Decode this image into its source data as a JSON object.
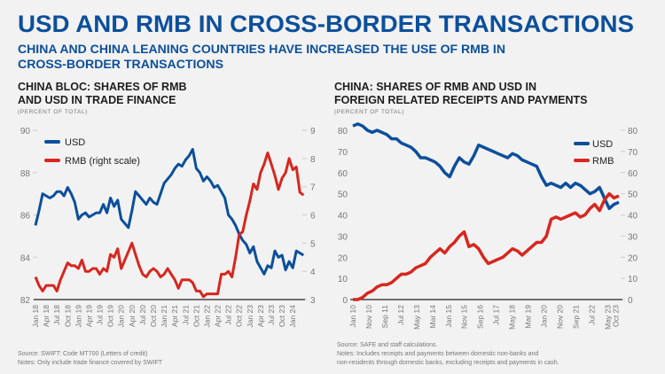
{
  "header": {
    "title": "USD AND RMB IN CROSS-BORDER TRANSACTIONS",
    "subtitle_line1": "CHINA AND CHINA LEANING COUNTRIES HAVE INCREASED THE USE OF RMB IN",
    "subtitle_line2": "CROSS-BORDER TRANSACTIONS"
  },
  "colors": {
    "usd": "#0b4f9c",
    "rmb": "#d8261e",
    "title": "#0b4f9c"
  },
  "chart_data": [
    {
      "type": "line",
      "title_line1": "CHINA BLOC: SHARES OF RMB",
      "title_line2": "AND USD IN TRADE FINANCE",
      "unit": "(PERCENT OF TOTAL)",
      "frequency": "monthly",
      "start": "2018-01",
      "x_tick_labels": [
        "Jan 18",
        "Apr 18",
        "Jul 18",
        "Oct 18",
        "Jan 19",
        "Apr 19",
        "Jul 19",
        "Oct 19",
        "Jan 20",
        "Apr 20",
        "Jul 20",
        "Oct 20",
        "Jan 21",
        "Apr 21",
        "Jul 21",
        "Oct 21",
        "Jan 22",
        "Apr 22",
        "Jul 22",
        "Oct 22",
        "Jan 23",
        "Apr 23",
        "Jul 23",
        "Oct 23",
        "Jan 24"
      ],
      "ylim_left": [
        82,
        90
      ],
      "yticks_left": [
        "82",
        "84",
        "86",
        "88",
        "90"
      ],
      "ylim_right": [
        3,
        9
      ],
      "yticks_right": [
        "3",
        "4",
        "5",
        "6",
        "7",
        "8",
        "9"
      ],
      "legend_placement": "top-left",
      "series": [
        {
          "name": "USD",
          "axis": "left",
          "color": "#0b4f9c",
          "values": [
            85.5,
            86.2,
            87.0,
            86.9,
            86.8,
            86.9,
            87.1,
            87.1,
            86.9,
            87.3,
            87.0,
            86.6,
            85.8,
            86.0,
            86.1,
            85.9,
            86.0,
            86.1,
            86.1,
            86.5,
            86.1,
            86.8,
            86.4,
            86.7,
            85.8,
            85.6,
            85.4,
            86.2,
            87.1,
            86.9,
            86.7,
            86.5,
            86.8,
            86.6,
            86.5,
            87.0,
            87.5,
            87.7,
            87.9,
            88.2,
            88.4,
            88.3,
            88.6,
            88.8,
            89.1,
            88.2,
            88.0,
            87.6,
            87.8,
            87.6,
            87.3,
            87.4,
            87.1,
            86.8,
            86.0,
            85.8,
            85.5,
            85.1,
            84.8,
            84.6,
            84.2,
            84.5,
            83.8,
            83.5,
            83.2,
            83.6,
            83.5,
            84.3,
            84.0,
            84.1,
            83.4,
            83.8,
            83.5,
            84.3,
            84.2,
            84.1
          ]
        },
        {
          "name": "RMB (right scale)",
          "axis": "right",
          "color": "#d8261e",
          "values": [
            3.8,
            3.5,
            3.3,
            3.5,
            3.5,
            3.5,
            3.3,
            3.7,
            4.0,
            4.3,
            4.2,
            4.2,
            4.1,
            4.4,
            4.0,
            4.0,
            4.1,
            4.1,
            3.9,
            4.1,
            4.0,
            4.6,
            4.5,
            4.8,
            4.1,
            4.4,
            4.7,
            5.0,
            4.6,
            4.2,
            3.9,
            3.8,
            4.0,
            4.1,
            4.0,
            3.8,
            3.9,
            4.1,
            3.9,
            3.7,
            3.4,
            3.7,
            3.7,
            3.7,
            3.6,
            3.3,
            3.3,
            3.1,
            3.2,
            3.2,
            3.2,
            3.2,
            3.9,
            3.9,
            4.0,
            3.8,
            4.5,
            5.3,
            5.4,
            6.0,
            6.5,
            7.1,
            6.9,
            7.5,
            7.8,
            8.2,
            7.8,
            7.4,
            6.9,
            7.3,
            7.5,
            8.0,
            7.6,
            7.7,
            6.8,
            6.7
          ]
        }
      ],
      "source": "Source: SWIFT: Code MT700 (Letters of credit)",
      "notes": "Notes: Only include trade finance covered by SWIFT"
    },
    {
      "type": "line",
      "title_line1": "CHINA: SHARES OF RMB AND USD IN",
      "title_line2": "FOREIGN RELATED RECEIPTS AND PAYMENTS",
      "unit": "(PERCENT OF TOTAL)",
      "frequency": "quarterly",
      "start": "2010-Q1",
      "x_tick_labels": [
        "Jan 10",
        "Nov 10",
        "Sep 11",
        "Jul 12",
        "May 13",
        "Mar 14",
        "Jan 15",
        "Nov 15",
        "Sep 16",
        "Jul 17",
        "May 18",
        "Mar 19",
        "Jan 20",
        "Nov 20",
        "Sep 21",
        "Jul 22",
        "May 23",
        "Oct 23"
      ],
      "ylim": [
        0,
        85
      ],
      "yticks": [
        "0",
        "10",
        "20",
        "30",
        "40",
        "50",
        "60",
        "70",
        "80"
      ],
      "legend_placement": "top-right",
      "series": [
        {
          "name": "USD",
          "color": "#0b4f9c",
          "values": [
            82,
            83,
            82,
            80,
            79,
            80,
            79,
            78,
            76,
            76,
            74,
            73,
            72,
            70,
            67,
            67,
            66,
            65,
            63,
            60,
            58,
            63,
            67,
            65,
            64,
            68,
            73,
            72,
            71,
            70,
            69,
            68,
            67,
            69,
            68,
            66,
            65,
            64,
            63,
            58,
            54,
            55,
            54,
            53,
            55,
            53,
            55,
            54,
            52,
            50,
            51,
            53,
            48,
            43,
            45,
            46
          ]
        },
        {
          "name": "RMB",
          "color": "#d8261e",
          "values": [
            0,
            0,
            1,
            3,
            4,
            6,
            7,
            7,
            8,
            10,
            12,
            12,
            13,
            15,
            16,
            17,
            20,
            22,
            24,
            22,
            25,
            27,
            30,
            32,
            25,
            26,
            24,
            20,
            17,
            18,
            19,
            20,
            22,
            24,
            23,
            21,
            23,
            25,
            27,
            27,
            30,
            38,
            39,
            38,
            39,
            40,
            41,
            39,
            40,
            43,
            45,
            42,
            47,
            50,
            48,
            49
          ]
        }
      ],
      "source": "Source: SAFE and staff calculations.",
      "notes_line1": "Notes: Includes receipts and payments between domestic non-banks and",
      "notes_line2": "non-residents through domestic banks, excluding receipts and payments in cash."
    }
  ]
}
